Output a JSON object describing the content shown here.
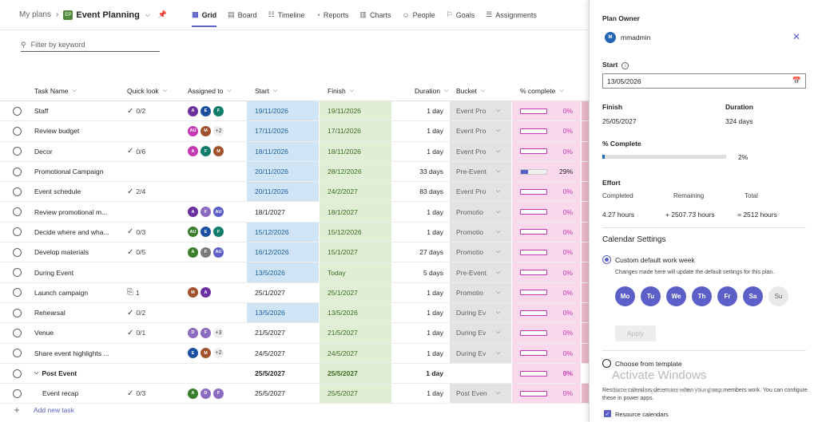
{
  "breadcrumb": {
    "root": "My plans",
    "plan_name": "Event Planning",
    "plan_icon": "EP"
  },
  "tabs": [
    {
      "label": "Grid",
      "icon": "grid-icon",
      "active": true
    },
    {
      "label": "Board",
      "icon": "board-icon"
    },
    {
      "label": "Timeline",
      "icon": "timeline-icon"
    },
    {
      "label": "Reports",
      "icon": "reports-icon"
    },
    {
      "label": "Charts",
      "icon": "charts-icon"
    },
    {
      "label": "People",
      "icon": "people-icon"
    },
    {
      "label": "Goals",
      "icon": "goals-icon"
    },
    {
      "label": "Assignments",
      "icon": "assignments-icon"
    }
  ],
  "filter": {
    "placeholder": "Filter by keyword"
  },
  "columns": {
    "task_name": "Task Name",
    "quick_look": "Quick look",
    "assigned_to": "Assigned to",
    "start": "Start",
    "finish": "Finish",
    "duration": "Duration",
    "bucket": "Bucket",
    "percent": "% complete"
  },
  "rows": [
    {
      "name": "Staff",
      "quick": "0/2",
      "quick_type": "check",
      "avatars": [
        [
          "A",
          "#6b2fa0"
        ],
        [
          "E",
          "#1b4fa0"
        ],
        [
          "F",
          "#107c6c"
        ]
      ],
      "more": "",
      "start": "19/11/2026",
      "start_hl": true,
      "finish": "19/11/2026",
      "finish_hl": true,
      "duration": "1 day",
      "bucket": "Event Pro",
      "pct": "0%",
      "fill": 0
    },
    {
      "name": "Review budget",
      "quick": "",
      "quick_type": "",
      "avatars": [
        [
          "AU",
          "#c239b3"
        ],
        [
          "M",
          "#a0522d"
        ]
      ],
      "more": "+2",
      "start": "17/11/2026",
      "start_hl": true,
      "finish": "17/11/2026",
      "finish_hl": true,
      "duration": "1 day",
      "bucket": "Event Pro",
      "pct": "0%",
      "fill": 0
    },
    {
      "name": "Decor",
      "quick": "0/6",
      "quick_type": "check",
      "avatars": [
        [
          "A",
          "#c239b3"
        ],
        [
          "F",
          "#107c6c"
        ],
        [
          "M",
          "#a0522d"
        ]
      ],
      "more": "",
      "start": "18/11/2026",
      "start_hl": true,
      "finish": "18/11/2026",
      "finish_hl": true,
      "duration": "1 day",
      "bucket": "Event Pro",
      "pct": "0%",
      "fill": 0
    },
    {
      "name": "Promotional Campaign",
      "quick": "",
      "quick_type": "",
      "avatars": [],
      "more": "",
      "start": "20/11/2026",
      "start_hl": true,
      "finish": "28/12/2026",
      "finish_hl": true,
      "duration": "33 days",
      "bucket": "Pre-Event",
      "pct": "29%",
      "fill": 0.29,
      "pct_dark": true
    },
    {
      "name": "Event schedule",
      "quick": "2/4",
      "quick_type": "check",
      "avatars": [],
      "more": "",
      "start": "20/11/2026",
      "start_hl": true,
      "finish": "24/2/2027",
      "finish_hl": true,
      "duration": "83 days",
      "bucket": "Event Pro",
      "pct": "0%",
      "fill": 0
    },
    {
      "name": "Review promotional m...",
      "quick": "",
      "quick_type": "",
      "avatars": [
        [
          "A",
          "#6b2fa0"
        ],
        [
          "F",
          "#8a6bbf"
        ],
        [
          "AU",
          "#5b5fc7"
        ]
      ],
      "more": "",
      "start": "18/1/2027",
      "start_hl": false,
      "finish": "18/1/2027",
      "finish_hl": true,
      "duration": "1 day",
      "bucket": "Promotio",
      "pct": "0%",
      "fill": 0
    },
    {
      "name": "Decide where and wha...",
      "quick": "0/3",
      "quick_type": "check",
      "avatars": [
        [
          "AU",
          "#3a7d2c"
        ],
        [
          "E",
          "#1b4fa0"
        ],
        [
          "F",
          "#107c6c"
        ]
      ],
      "more": "",
      "start": "15/12/2026",
      "start_hl": true,
      "finish": "15/12/2026",
      "finish_hl": true,
      "duration": "1 day",
      "bucket": "Promotio",
      "pct": "0%",
      "fill": 0
    },
    {
      "name": "Develop materials",
      "quick": "0/5",
      "quick_type": "check",
      "avatars": [
        [
          "A",
          "#3a7d2c"
        ],
        [
          "F",
          "#7a7a7a"
        ],
        [
          "AU",
          "#5b5fc7"
        ]
      ],
      "more": "",
      "start": "16/12/2026",
      "start_hl": true,
      "finish": "15/1/2027",
      "finish_hl": true,
      "duration": "27 days",
      "bucket": "Promotio",
      "pct": "0%",
      "fill": 0
    },
    {
      "name": "During Event",
      "quick": "",
      "quick_type": "",
      "avatars": [],
      "more": "",
      "start": "13/5/2026",
      "start_hl": true,
      "finish": "Today",
      "finish_hl": true,
      "duration": "5 days",
      "bucket": "Pre-Event",
      "pct": "0%",
      "fill": 0
    },
    {
      "name": "Launch campaign",
      "quick": "1",
      "quick_type": "clip",
      "avatars": [
        [
          "M",
          "#a0522d"
        ],
        [
          "A",
          "#6b2fa0"
        ]
      ],
      "more": "",
      "start": "25/1/2027",
      "start_hl": false,
      "finish": "25/1/2027",
      "finish_hl": true,
      "duration": "1 day",
      "bucket": "Promotio",
      "pct": "0%",
      "fill": 0
    },
    {
      "name": "Rehearsal",
      "quick": "0/2",
      "quick_type": "check",
      "avatars": [],
      "more": "",
      "start": "13/5/2026",
      "start_hl": true,
      "finish": "13/5/2026",
      "finish_hl": true,
      "duration": "1 day",
      "bucket": "During Ev",
      "pct": "0%",
      "fill": 0
    },
    {
      "name": "Venue",
      "quick": "0/1",
      "quick_type": "check",
      "avatars": [
        [
          "D",
          "#8a6bbf"
        ],
        [
          "F",
          "#8a6bbf"
        ]
      ],
      "more": "+3",
      "start": "21/5/2027",
      "start_hl": false,
      "finish": "21/5/2027",
      "finish_hl": true,
      "duration": "1 day",
      "bucket": "During Ev",
      "pct": "0%",
      "fill": 0
    },
    {
      "name": "Share event highlights ...",
      "quick": "",
      "quick_type": "",
      "avatars": [
        [
          "E",
          "#1b4fa0"
        ],
        [
          "M",
          "#a0522d"
        ]
      ],
      "more": "+2",
      "start": "24/5/2027",
      "start_hl": false,
      "finish": "24/5/2027",
      "finish_hl": true,
      "duration": "1 day",
      "bucket": "During Ev",
      "pct": "0%",
      "fill": 0
    },
    {
      "name": "Post Event",
      "summary": true,
      "quick": "",
      "quick_type": "",
      "avatars": [],
      "more": "",
      "start": "25/5/2027",
      "start_hl": false,
      "finish": "25/5/2027",
      "finish_hl": true,
      "duration": "1 day",
      "bucket": "",
      "pct": "0%",
      "fill": 0
    },
    {
      "name": "Event recap",
      "indent": true,
      "quick": "0/3",
      "quick_type": "check",
      "avatars": [
        [
          "A",
          "#3a7d2c"
        ],
        [
          "D",
          "#8a6bbf"
        ],
        [
          "F",
          "#8a6bbf"
        ]
      ],
      "more": "",
      "start": "25/5/2027",
      "start_hl": false,
      "finish": "25/5/2027",
      "finish_hl": true,
      "duration": "1 day",
      "bucket": "Post Even",
      "pct": "0%",
      "fill": 0
    }
  ],
  "add_task": "Add new task",
  "panel": {
    "owner_label": "Plan Owner",
    "owner_initial": "M",
    "owner_name": "mmadmin",
    "start_label": "Start",
    "start_value": "13/05/2026",
    "finish_label": "Finish",
    "finish_value": "25/05/2027",
    "duration_label": "Duration",
    "duration_value": "324 days",
    "complete_label": "% Complete",
    "complete_value": "2%",
    "complete_fill": 0.02,
    "effort_label": "Effort",
    "completed_label": "Completed",
    "remaining_label": "Remaining",
    "total_label": "Total",
    "completed_value": "4.27 hours",
    "remaining_value": "+ 2507.73 hours",
    "total_value": "= 2512 hours",
    "calendar_title": "Calendar Settings",
    "custom_option": "Custom default work week",
    "custom_note": "Changes made here will update the default settings for this plan.",
    "days": [
      {
        "label": "Mo",
        "on": true
      },
      {
        "label": "Tu",
        "on": true
      },
      {
        "label": "We",
        "on": true
      },
      {
        "label": "Th",
        "on": true
      },
      {
        "label": "Fr",
        "on": true
      },
      {
        "label": "Sa",
        "on": true
      },
      {
        "label": "Su",
        "on": false
      }
    ],
    "apply_label": "Apply",
    "template_option": "Choose from template",
    "resource_note": "Resource calendars determine when your group members work. You can configure these in power apps.",
    "resource_checkbox": "Resource calendars",
    "watermark": "Activate Windows",
    "watermark_sub": "Go to Settings to activate Windows."
  }
}
